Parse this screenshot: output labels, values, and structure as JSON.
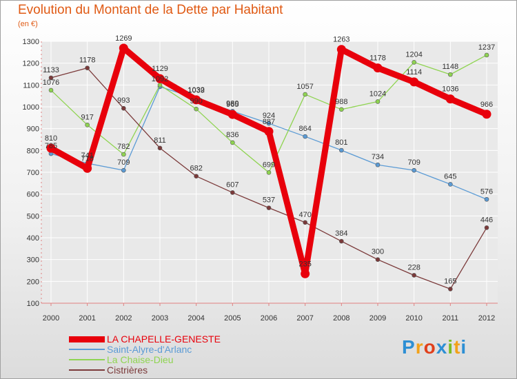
{
  "header": {
    "title": "Evolution du Montant de la Dette par Habitant",
    "subtitle": "(en €)"
  },
  "brand": {
    "letters": [
      "P",
      "r",
      "o",
      "x",
      "i",
      "t",
      "i"
    ],
    "colors": [
      "#2d8fd4",
      "#f2a21a",
      "#e0401c",
      "#2d8fd4",
      "#7bbd24",
      "#f2a21a",
      "#2d8fd4"
    ]
  },
  "colors": {
    "title": "#e05a14",
    "axis": "#e08080",
    "grid": "#ffffff"
  },
  "chart_data": {
    "type": "line",
    "title": "Evolution du Montant de la Dette par Habitant",
    "subtitle": "(en €)",
    "x": [
      "2000",
      "2001",
      "2002",
      "2003",
      "2004",
      "2005",
      "2006",
      "2007",
      "2008",
      "2009",
      "2010",
      "2011",
      "2012"
    ],
    "ylim": [
      100,
      1300
    ],
    "yticks": [
      "100",
      "200",
      "300",
      "400",
      "500",
      "600",
      "700",
      "800",
      "900",
      "1000",
      "1100",
      "1200",
      "1300"
    ],
    "grid": true,
    "legend_position": "bottom-left",
    "series": [
      {
        "name": "LA CHAPELLE-GENESTE",
        "color": "#e8000b",
        "emphasis": true,
        "values": [
          810,
          718,
          1269,
          1129,
          1032,
          965,
          887,
          235,
          1263,
          1178,
          1114,
          1036,
          966
        ],
        "labels": [
          "810",
          "718",
          "1269",
          "1129",
          "1032",
          "965",
          "887",
          "235",
          "1263",
          "1178",
          "1114",
          "1036",
          "966"
        ]
      },
      {
        "name": "Saint-Alyre-d'Arlanc",
        "color": "#5b9bd5",
        "emphasis": false,
        "values": [
          785,
          741,
          709,
          1092,
          1039,
          980,
          924,
          864,
          801,
          734,
          709,
          645,
          576
        ],
        "labels": [
          "785",
          "741",
          "709",
          "1092",
          "1039",
          "980",
          "924",
          "864",
          "801",
          "734",
          "709",
          "645",
          "576"
        ]
      },
      {
        "name": "La Chaise-Dieu",
        "color": "#8fd451",
        "emphasis": false,
        "values": [
          1076,
          917,
          782,
          1100,
          990,
          836,
          699,
          1057,
          988,
          1024,
          1204,
          1148,
          1237
        ],
        "labels": [
          "1076",
          "917",
          "782",
          "",
          "990",
          "836",
          "699",
          "1057",
          "988",
          "1024",
          "1204",
          "1148",
          "1237"
        ]
      },
      {
        "name": "Cistrières",
        "color": "#7b3a3a",
        "emphasis": false,
        "values": [
          1133,
          1178,
          993,
          811,
          682,
          607,
          537,
          470,
          384,
          300,
          228,
          165,
          446
        ],
        "labels": [
          "1133",
          "1178",
          "993",
          "811",
          "682",
          "607",
          "537",
          "470",
          "384",
          "300",
          "228",
          "165",
          "446"
        ]
      }
    ]
  }
}
